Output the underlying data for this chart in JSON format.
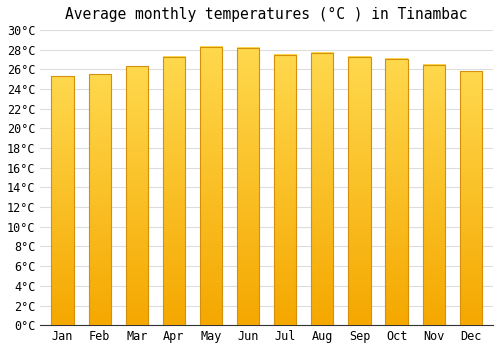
{
  "title": "Average monthly temperatures (°C ) in Tinambac",
  "months": [
    "Jan",
    "Feb",
    "Mar",
    "Apr",
    "May",
    "Jun",
    "Jul",
    "Aug",
    "Sep",
    "Oct",
    "Nov",
    "Dec"
  ],
  "values": [
    25.3,
    25.5,
    26.3,
    27.3,
    28.3,
    28.2,
    27.5,
    27.7,
    27.3,
    27.1,
    26.5,
    25.8
  ],
  "bar_color_light": "#FFD84D",
  "bar_color_dark": "#F5A800",
  "bar_edge_color": "#D4900A",
  "ylim": [
    0,
    30
  ],
  "ytick_step": 2,
  "background_color": "#ffffff",
  "grid_color": "#dddddd",
  "title_fontsize": 10.5,
  "tick_fontsize": 8.5,
  "bar_width": 0.6,
  "gradient_steps": 100
}
